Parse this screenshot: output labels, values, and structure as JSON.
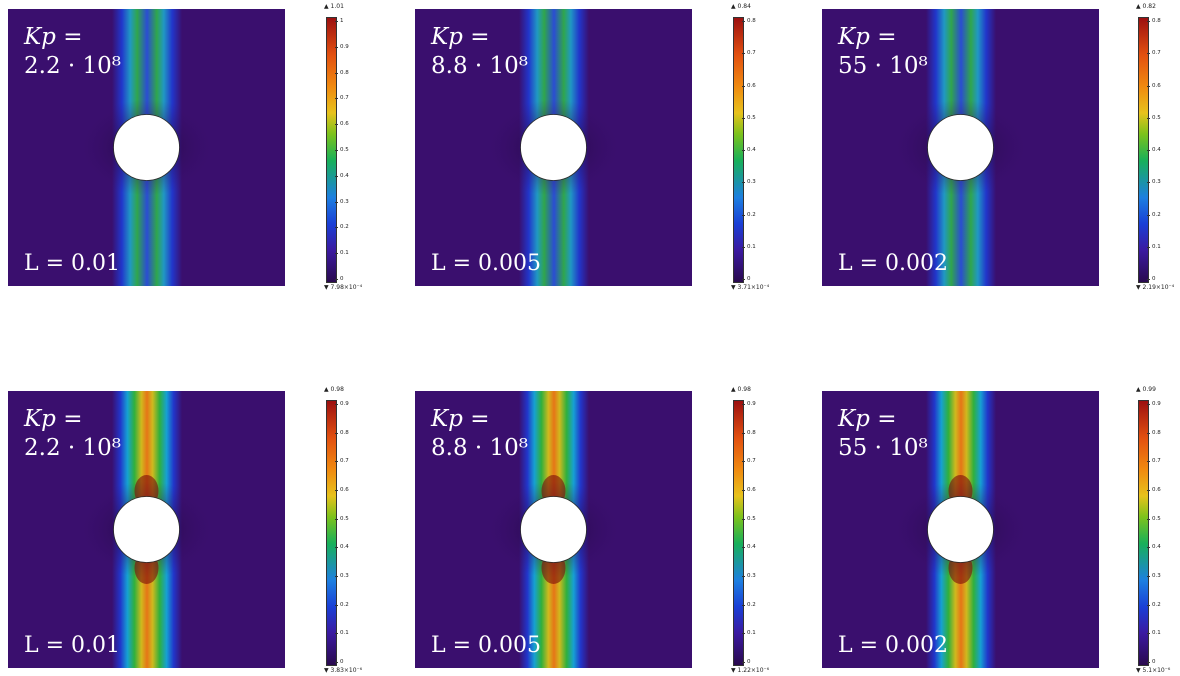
{
  "panels": [
    {
      "kp_prefix": "Kp =",
      "kp_value": "2.2 · 10⁸",
      "L": "L = 0.01",
      "cb_max": "▲ 1.01",
      "cb_min": "▼ 7.98×10⁻⁴",
      "ticks": [
        "1",
        "0.9",
        "0.8",
        "0.7",
        "0.6",
        "0.5",
        "0.4",
        "0.3",
        "0.2",
        "0.1",
        "0"
      ],
      "variant": "low"
    },
    {
      "kp_prefix": "Kp =",
      "kp_value": "8.8 · 10⁸",
      "L": "L = 0.005",
      "cb_max": "▲ 0.84",
      "cb_min": "▼ 3.71×10⁻⁴",
      "ticks": [
        "0.8",
        "0.7",
        "0.6",
        "0.5",
        "0.4",
        "0.3",
        "0.2",
        "0.1",
        "0"
      ],
      "variant": "low"
    },
    {
      "kp_prefix": "Kp =",
      "kp_value": "55 · 10⁸",
      "L": "L = 0.002",
      "cb_max": "▲ 0.82",
      "cb_min": "▼ 2.19×10⁻⁴",
      "ticks": [
        "0.8",
        "0.7",
        "0.6",
        "0.5",
        "0.4",
        "0.3",
        "0.2",
        "0.1",
        "0"
      ],
      "variant": "low"
    },
    {
      "kp_prefix": "Kp =",
      "kp_value": "2.2 · 10⁸",
      "L": "L = 0.01",
      "cb_max": "▲ 0.98",
      "cb_min": "▼ 3.83×10⁻⁶",
      "ticks": [
        "0.9",
        "0.8",
        "0.7",
        "0.6",
        "0.5",
        "0.4",
        "0.3",
        "0.2",
        "0.1",
        "0"
      ],
      "variant": "high"
    },
    {
      "kp_prefix": "Kp =",
      "kp_value": "8.8 · 10⁸",
      "L": "L = 0.005",
      "cb_max": "▲ 0.98",
      "cb_min": "▼ 1.22×10⁻⁶",
      "ticks": [
        "0.9",
        "0.8",
        "0.7",
        "0.6",
        "0.5",
        "0.4",
        "0.3",
        "0.2",
        "0.1",
        "0"
      ],
      "variant": "high"
    },
    {
      "kp_prefix": "Kp =",
      "kp_value": "55 · 10⁸",
      "L": "L = 0.002",
      "cb_max": "▲ 0.99",
      "cb_min": "▼ 5.1×10⁻⁶",
      "ticks": [
        "0.9",
        "0.8",
        "0.7",
        "0.6",
        "0.5",
        "0.4",
        "0.3",
        "0.2",
        "0.1",
        "0"
      ],
      "variant": "high"
    }
  ],
  "colors": {
    "background": "#3a0f6e",
    "hole": "#ffffff",
    "text": "#ffffff"
  }
}
